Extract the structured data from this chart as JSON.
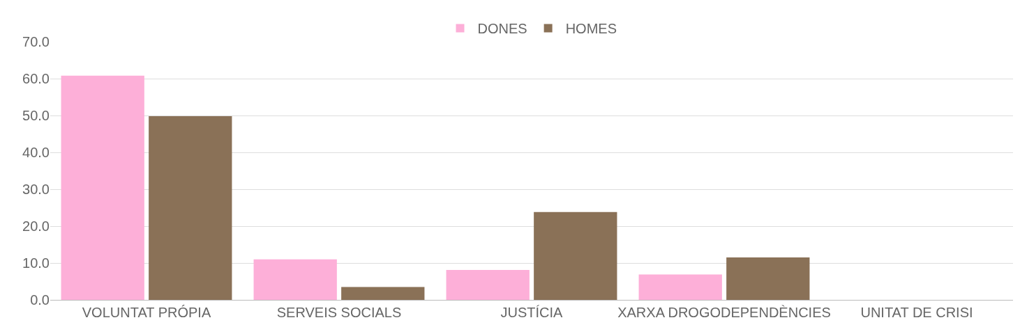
{
  "chart_data": {
    "type": "bar",
    "categories": [
      "VOLUNTAT PRÓPIA",
      "SERVEIS SOCIALS",
      "JUSTÍCIA",
      "XARXA DROGODEPENDÈNCIES",
      "UNITAT DE CRISI"
    ],
    "series": [
      {
        "name": "DONES",
        "color": "#fdafd8",
        "values": [
          60.8,
          11.0,
          8.1,
          6.9,
          0
        ]
      },
      {
        "name": "HOMES",
        "color": "#8a7157",
        "values": [
          49.8,
          3.5,
          23.8,
          11.5,
          0
        ]
      }
    ],
    "ylim": [
      0,
      70
    ],
    "yticks": [
      {
        "value": 0,
        "label": "0.0"
      },
      {
        "value": 10,
        "label": "10.0"
      },
      {
        "value": 20,
        "label": "20.0"
      },
      {
        "value": 30,
        "label": "30.0"
      },
      {
        "value": 40,
        "label": "40.0"
      },
      {
        "value": 50,
        "label": "50.0"
      },
      {
        "value": 60,
        "label": "60.0"
      },
      {
        "value": 70,
        "label": "70.0"
      }
    ],
    "grid": "y",
    "legend": "top"
  }
}
